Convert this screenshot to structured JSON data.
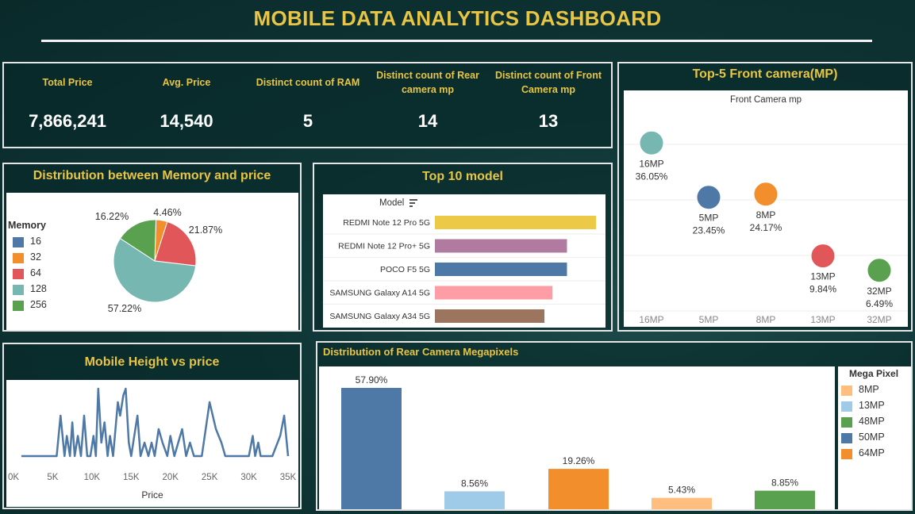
{
  "header": {
    "title": "MOBILE DATA ANALYTICS DASHBOARD"
  },
  "kpis": [
    {
      "label": "Total Price",
      "value": "7,866,241"
    },
    {
      "label": "Avg. Price",
      "value": "14,540"
    },
    {
      "label": "Distinct count of RAM",
      "value": "5"
    },
    {
      "label": "Distinct count of Rear camera mp",
      "value": "14"
    },
    {
      "label": "Distinct count of Front Camera mp",
      "value": "13"
    }
  ],
  "memory_pie": {
    "title": "Distribution between Memory and price",
    "legend_title": "Memory",
    "legend": [
      {
        "label": "16",
        "color": "#4e79a7"
      },
      {
        "label": "32",
        "color": "#f28e2b"
      },
      {
        "label": "64",
        "color": "#e15759"
      },
      {
        "label": "128",
        "color": "#76b7b2"
      },
      {
        "label": "256",
        "color": "#59a14f"
      }
    ]
  },
  "top10": {
    "title": "Top 10 model",
    "axis_header": "Model"
  },
  "front_camera": {
    "title": "Top-5 Front camera(MP)",
    "subtitle": "Front Camera mp"
  },
  "height_price": {
    "title": "Mobile Height vs price",
    "xlabel": "Price"
  },
  "rear_camera": {
    "title": "Distribution of Rear Camera Megapixels",
    "legend_title": "Mega Pixel",
    "legend": [
      {
        "label": "8MP",
        "color": "#ffbe7d"
      },
      {
        "label": "13MP",
        "color": "#a0cbe8"
      },
      {
        "label": "48MP",
        "color": "#59a14f"
      },
      {
        "label": "50MP",
        "color": "#4e79a7"
      },
      {
        "label": "64MP",
        "color": "#f28e2b"
      }
    ]
  },
  "chart_data": [
    {
      "type": "pie",
      "title": "Distribution between Memory and price",
      "legend_position": "left",
      "slices": [
        {
          "label": "32",
          "value": 4.46,
          "text": "4.46%",
          "color": "#f28e2b"
        },
        {
          "label": "64",
          "value": 21.87,
          "text": "21.87%",
          "color": "#e15759"
        },
        {
          "label": "128",
          "value": 57.22,
          "text": "57.22%",
          "color": "#76b7b2"
        },
        {
          "label": "256",
          "value": 16.22,
          "text": "16.22%",
          "color": "#59a14f"
        }
      ]
    },
    {
      "type": "bar",
      "orientation": "horizontal",
      "title": "Top 10 model",
      "categories": [
        "REDMI Note 12 Pro 5G",
        "REDMI Note 12 Pro+ 5G",
        "POCO F5 5G",
        "SAMSUNG Galaxy A14 5G",
        "SAMSUNG Galaxy A34 5G"
      ],
      "values": [
        100,
        82,
        82,
        73,
        68
      ],
      "colors": [
        "#edc948",
        "#b07aa1",
        "#4e79a7",
        "#ff9da7",
        "#9c755f"
      ]
    },
    {
      "type": "scatter",
      "title": "Top-5 Front camera(MP)",
      "subtitle": "Front Camera mp",
      "categories": [
        "16MP",
        "5MP",
        "8MP",
        "13MP",
        "32MP"
      ],
      "values": [
        36.05,
        23.45,
        24.17,
        9.84,
        6.49
      ],
      "labels": [
        "36.05%",
        "23.45%",
        "24.17%",
        "9.84%",
        "6.49%"
      ],
      "colors": [
        "#76b7b2",
        "#4e79a7",
        "#f28e2b",
        "#e15759",
        "#59a14f"
      ],
      "ylim": [
        0,
        42
      ],
      "grid": true
    },
    {
      "type": "line",
      "title": "Mobile Height vs price",
      "xlabel": "Price",
      "xlim": [
        0,
        35000
      ],
      "xticks": [
        "0K",
        "5K",
        "10K",
        "15K",
        "20K",
        "25K",
        "30K",
        "35K"
      ],
      "x": [
        1000,
        5500,
        6000,
        6500,
        6800,
        7200,
        7500,
        7800,
        8200,
        8600,
        9000,
        9400,
        9800,
        10200,
        10500,
        10800,
        11200,
        11600,
        12000,
        12300,
        12700,
        13000,
        13300,
        13600,
        14000,
        14300,
        14700,
        15000,
        15400,
        15800,
        16200,
        16700,
        17200,
        17600,
        18000,
        18500,
        19000,
        19600,
        20000,
        20500,
        21000,
        21500,
        22000,
        22500,
        23000,
        24000,
        25000,
        25800,
        26500,
        27000,
        28000,
        29000,
        30000,
        30500,
        30800,
        31200,
        31500,
        32000,
        33000,
        34000,
        34500,
        35000
      ],
      "y": [
        0,
        0,
        0.6,
        0,
        0.3,
        0,
        0.5,
        0,
        0.3,
        0,
        0.6,
        0,
        0,
        0.3,
        0,
        1.0,
        0.2,
        0.5,
        0,
        0.3,
        0,
        0.4,
        0.8,
        0.6,
        0.9,
        1.0,
        0.2,
        0,
        0.3,
        0.6,
        0,
        0.2,
        0,
        0.2,
        0,
        0.4,
        0.2,
        0,
        0.3,
        0,
        0.2,
        0.4,
        0,
        0.2,
        0,
        0,
        0.8,
        0.4,
        0.2,
        0,
        0,
        0,
        0,
        0.3,
        0,
        0.2,
        0,
        0,
        0,
        0.3,
        0.6,
        0
      ]
    },
    {
      "type": "bar",
      "title": "Distribution of Rear Camera Megapixels",
      "categories": [
        "50MP",
        "13MP",
        "64MP",
        "8MP",
        "48MP"
      ],
      "values": [
        57.9,
        8.56,
        19.26,
        5.43,
        8.85
      ],
      "labels": [
        "57.90%",
        "8.56%",
        "19.26%",
        "5.43%",
        "8.85%"
      ],
      "colors": [
        "#4e79a7",
        "#a0cbe8",
        "#f28e2b",
        "#ffbe7d",
        "#59a14f"
      ],
      "legend_position": "right"
    }
  ]
}
